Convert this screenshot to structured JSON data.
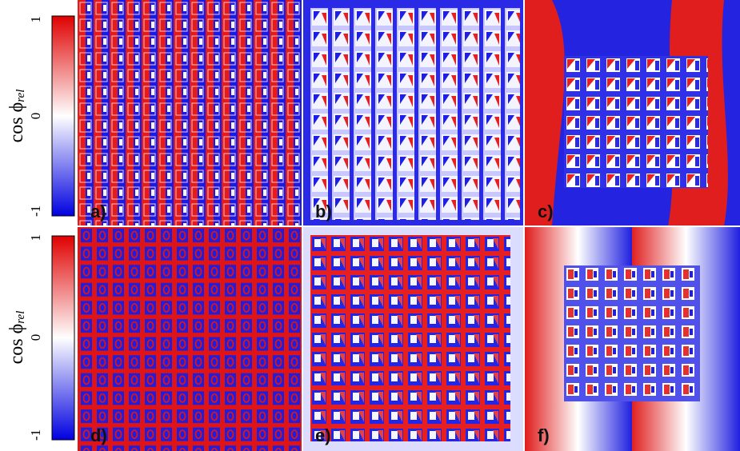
{
  "colorbars": [
    {
      "label": {
        "text": "cos ϕ",
        "subscript": "rel"
      },
      "ticks": [
        "1",
        "0",
        "-1"
      ]
    },
    {
      "label": {
        "text": "cos ϕ",
        "subscript": "rel"
      },
      "ticks": [
        "1",
        "0",
        "-1"
      ]
    }
  ],
  "panels": [
    {
      "label": "a)"
    },
    {
      "label": "b)"
    },
    {
      "label": "c)"
    },
    {
      "label": "d)"
    },
    {
      "label": "e)"
    },
    {
      "label": "f)"
    }
  ]
}
